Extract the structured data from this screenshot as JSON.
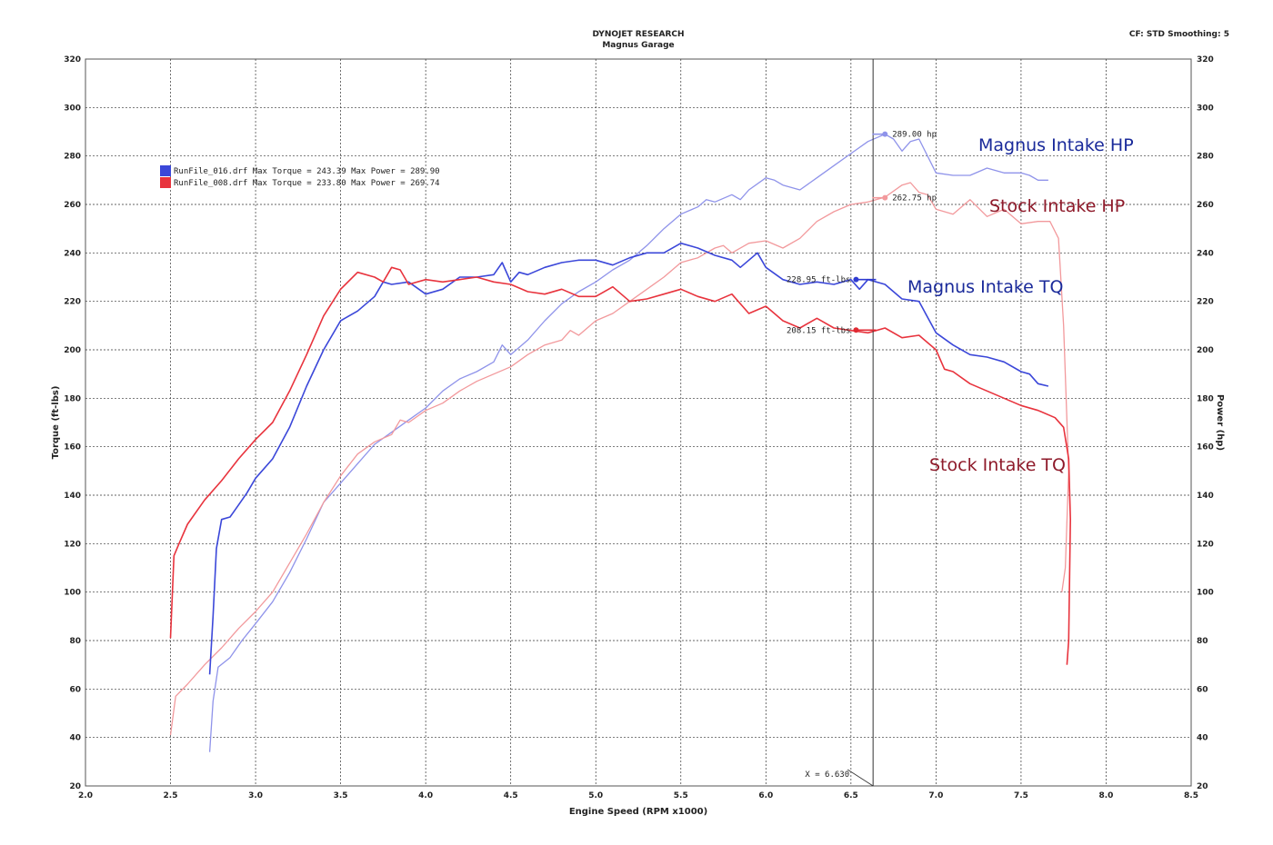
{
  "header": {
    "title": "DYNOJET RESEARCH",
    "subtitle": "Magnus Garage",
    "settings": "CF: STD  Smoothing: 5"
  },
  "chart_data": {
    "type": "line",
    "xlabel": "Engine Speed (RPM x1000)",
    "ylabel_left": "Torque (ft-lbs)",
    "ylabel_right": "Power (hp)",
    "xlim": [
      2.0,
      8.5
    ],
    "ylim": [
      20,
      320
    ],
    "x_ticks": [
      "2.0",
      "2.5",
      "3.0",
      "3.5",
      "4.0",
      "4.5",
      "5.0",
      "5.5",
      "6.0",
      "6.5",
      "7.0",
      "7.5",
      "8.0",
      "8.5"
    ],
    "y_ticks": [
      "20",
      "40",
      "60",
      "80",
      "100",
      "120",
      "140",
      "160",
      "180",
      "200",
      "220",
      "240",
      "260",
      "280",
      "300",
      "320"
    ],
    "grid": true,
    "legend": [
      {
        "label": "RunFile_016.drf Max Torque = 243.39 Max Power = 289.90",
        "color": "#3b47d9"
      },
      {
        "label": "RunFile_008.drf Max Torque = 233.80 Max Power = 269.74",
        "color": "#e8333d"
      }
    ],
    "cursor": {
      "x": 6.63,
      "label": "X = 6.630"
    },
    "markers": [
      {
        "series": "blue-hp",
        "x": 6.7,
        "y": 289,
        "label": "289.00 hp"
      },
      {
        "series": "red-hp",
        "x": 6.7,
        "y": 262.75,
        "label": "262.75 hp"
      },
      {
        "series": "blue-tq",
        "x": 6.53,
        "y": 229,
        "label": "228.95 ft-lbs"
      },
      {
        "series": "red-tq",
        "x": 6.53,
        "y": 208.15,
        "label": "208.15 ft-lbs"
      }
    ],
    "series": [
      {
        "name": "Magnus Intake HP",
        "color": "#8f93ea",
        "width": 1.3,
        "points": [
          [
            2.73,
            34
          ],
          [
            2.75,
            55
          ],
          [
            2.78,
            69
          ],
          [
            2.85,
            73
          ],
          [
            2.92,
            80
          ],
          [
            3.0,
            87
          ],
          [
            3.1,
            96
          ],
          [
            3.2,
            108
          ],
          [
            3.3,
            122
          ],
          [
            3.4,
            137
          ],
          [
            3.5,
            145
          ],
          [
            3.6,
            153
          ],
          [
            3.7,
            161
          ],
          [
            3.8,
            166
          ],
          [
            3.9,
            171
          ],
          [
            4.0,
            176
          ],
          [
            4.1,
            183
          ],
          [
            4.2,
            188
          ],
          [
            4.3,
            191
          ],
          [
            4.4,
            195
          ],
          [
            4.45,
            202
          ],
          [
            4.5,
            198
          ],
          [
            4.6,
            204
          ],
          [
            4.7,
            212
          ],
          [
            4.8,
            219
          ],
          [
            4.9,
            224
          ],
          [
            5.0,
            228
          ],
          [
            5.1,
            233
          ],
          [
            5.2,
            237
          ],
          [
            5.3,
            243
          ],
          [
            5.4,
            250
          ],
          [
            5.5,
            256
          ],
          [
            5.6,
            259
          ],
          [
            5.65,
            262
          ],
          [
            5.7,
            261
          ],
          [
            5.8,
            264
          ],
          [
            5.85,
            262
          ],
          [
            5.9,
            266
          ],
          [
            6.0,
            271
          ],
          [
            6.05,
            270
          ],
          [
            6.1,
            268
          ],
          [
            6.2,
            266
          ],
          [
            6.3,
            271
          ],
          [
            6.4,
            276
          ],
          [
            6.5,
            281
          ],
          [
            6.6,
            286
          ],
          [
            6.7,
            289
          ],
          [
            6.75,
            287
          ],
          [
            6.8,
            282
          ],
          [
            6.85,
            286
          ],
          [
            6.9,
            287
          ],
          [
            7.0,
            273
          ],
          [
            7.1,
            272
          ],
          [
            7.2,
            272
          ],
          [
            7.3,
            275
          ],
          [
            7.4,
            273
          ],
          [
            7.5,
            273
          ],
          [
            7.55,
            272
          ],
          [
            7.6,
            270
          ],
          [
            7.66,
            270
          ]
        ]
      },
      {
        "name": "Stock Intake HP",
        "color": "#f2999c",
        "width": 1.3,
        "points": [
          [
            2.5,
            41
          ],
          [
            2.53,
            57
          ],
          [
            2.6,
            62
          ],
          [
            2.7,
            70
          ],
          [
            2.8,
            77
          ],
          [
            2.9,
            85
          ],
          [
            3.0,
            92
          ],
          [
            3.1,
            100
          ],
          [
            3.2,
            112
          ],
          [
            3.3,
            124
          ],
          [
            3.4,
            137
          ],
          [
            3.5,
            148
          ],
          [
            3.6,
            157
          ],
          [
            3.7,
            162
          ],
          [
            3.8,
            165
          ],
          [
            3.85,
            171
          ],
          [
            3.9,
            170
          ],
          [
            4.0,
            175
          ],
          [
            4.1,
            178
          ],
          [
            4.2,
            183
          ],
          [
            4.3,
            187
          ],
          [
            4.4,
            190
          ],
          [
            4.5,
            193
          ],
          [
            4.6,
            198
          ],
          [
            4.7,
            202
          ],
          [
            4.8,
            204
          ],
          [
            4.85,
            208
          ],
          [
            4.9,
            206
          ],
          [
            5.0,
            212
          ],
          [
            5.1,
            215
          ],
          [
            5.2,
            220
          ],
          [
            5.3,
            225
          ],
          [
            5.4,
            230
          ],
          [
            5.5,
            236
          ],
          [
            5.6,
            238
          ],
          [
            5.7,
            242
          ],
          [
            5.75,
            243
          ],
          [
            5.8,
            240
          ],
          [
            5.9,
            244
          ],
          [
            6.0,
            245
          ],
          [
            6.1,
            242
          ],
          [
            6.2,
            246
          ],
          [
            6.3,
            253
          ],
          [
            6.4,
            257
          ],
          [
            6.5,
            260
          ],
          [
            6.6,
            261
          ],
          [
            6.7,
            263
          ],
          [
            6.8,
            268
          ],
          [
            6.85,
            269
          ],
          [
            6.9,
            265
          ],
          [
            6.95,
            264
          ],
          [
            7.0,
            258
          ],
          [
            7.1,
            256
          ],
          [
            7.2,
            262
          ],
          [
            7.3,
            255
          ],
          [
            7.4,
            258
          ],
          [
            7.5,
            252
          ],
          [
            7.6,
            253
          ],
          [
            7.67,
            253
          ],
          [
            7.72,
            246
          ],
          [
            7.75,
            210
          ],
          [
            7.78,
            150
          ],
          [
            7.76,
            110
          ],
          [
            7.74,
            100
          ]
        ]
      },
      {
        "name": "Magnus Intake TQ",
        "color": "#3b47d9",
        "width": 1.6,
        "points": [
          [
            2.73,
            66
          ],
          [
            2.75,
            90
          ],
          [
            2.77,
            118
          ],
          [
            2.8,
            130
          ],
          [
            2.85,
            131
          ],
          [
            2.9,
            136
          ],
          [
            2.95,
            141
          ],
          [
            3.0,
            147
          ],
          [
            3.1,
            155
          ],
          [
            3.2,
            168
          ],
          [
            3.3,
            185
          ],
          [
            3.4,
            200
          ],
          [
            3.5,
            212
          ],
          [
            3.6,
            216
          ],
          [
            3.7,
            222
          ],
          [
            3.75,
            228
          ],
          [
            3.8,
            227
          ],
          [
            3.9,
            228
          ],
          [
            4.0,
            223
          ],
          [
            4.1,
            225
          ],
          [
            4.2,
            230
          ],
          [
            4.3,
            230
          ],
          [
            4.4,
            231
          ],
          [
            4.45,
            236
          ],
          [
            4.5,
            228
          ],
          [
            4.55,
            232
          ],
          [
            4.6,
            231
          ],
          [
            4.7,
            234
          ],
          [
            4.8,
            236
          ],
          [
            4.9,
            237
          ],
          [
            5.0,
            237
          ],
          [
            5.1,
            235
          ],
          [
            5.2,
            238
          ],
          [
            5.3,
            240
          ],
          [
            5.4,
            240
          ],
          [
            5.5,
            244
          ],
          [
            5.6,
            242
          ],
          [
            5.7,
            239
          ],
          [
            5.8,
            237
          ],
          [
            5.85,
            234
          ],
          [
            5.9,
            237
          ],
          [
            5.95,
            240
          ],
          [
            6.0,
            234
          ],
          [
            6.1,
            229
          ],
          [
            6.2,
            227
          ],
          [
            6.3,
            228
          ],
          [
            6.4,
            227
          ],
          [
            6.5,
            229
          ],
          [
            6.55,
            225
          ],
          [
            6.6,
            229
          ],
          [
            6.7,
            227
          ],
          [
            6.8,
            221
          ],
          [
            6.9,
            220
          ],
          [
            7.0,
            207
          ],
          [
            7.1,
            202
          ],
          [
            7.2,
            198
          ],
          [
            7.3,
            197
          ],
          [
            7.4,
            195
          ],
          [
            7.5,
            191
          ],
          [
            7.55,
            190
          ],
          [
            7.6,
            186
          ],
          [
            7.66,
            185
          ]
        ]
      },
      {
        "name": "Stock Intake TQ",
        "color": "#e8333d",
        "width": 1.6,
        "points": [
          [
            2.5,
            81
          ],
          [
            2.52,
            115
          ],
          [
            2.55,
            120
          ],
          [
            2.6,
            128
          ],
          [
            2.7,
            138
          ],
          [
            2.8,
            146
          ],
          [
            2.9,
            155
          ],
          [
            3.0,
            163
          ],
          [
            3.1,
            170
          ],
          [
            3.2,
            183
          ],
          [
            3.3,
            198
          ],
          [
            3.4,
            214
          ],
          [
            3.5,
            225
          ],
          [
            3.6,
            232
          ],
          [
            3.7,
            230
          ],
          [
            3.75,
            228
          ],
          [
            3.8,
            234
          ],
          [
            3.85,
            233
          ],
          [
            3.9,
            227
          ],
          [
            4.0,
            229
          ],
          [
            4.1,
            228
          ],
          [
            4.2,
            229
          ],
          [
            4.3,
            230
          ],
          [
            4.4,
            228
          ],
          [
            4.5,
            227
          ],
          [
            4.6,
            224
          ],
          [
            4.7,
            223
          ],
          [
            4.8,
            225
          ],
          [
            4.9,
            222
          ],
          [
            5.0,
            222
          ],
          [
            5.1,
            226
          ],
          [
            5.2,
            220
          ],
          [
            5.3,
            221
          ],
          [
            5.4,
            223
          ],
          [
            5.5,
            225
          ],
          [
            5.6,
            222
          ],
          [
            5.7,
            220
          ],
          [
            5.8,
            223
          ],
          [
            5.9,
            215
          ],
          [
            6.0,
            218
          ],
          [
            6.1,
            212
          ],
          [
            6.2,
            209
          ],
          [
            6.3,
            213
          ],
          [
            6.4,
            209
          ],
          [
            6.5,
            208
          ],
          [
            6.6,
            207
          ],
          [
            6.7,
            209
          ],
          [
            6.8,
            205
          ],
          [
            6.9,
            206
          ],
          [
            7.0,
            200
          ],
          [
            7.05,
            192
          ],
          [
            7.1,
            191
          ],
          [
            7.2,
            186
          ],
          [
            7.3,
            183
          ],
          [
            7.4,
            180
          ],
          [
            7.5,
            177
          ],
          [
            7.6,
            175
          ],
          [
            7.7,
            172
          ],
          [
            7.75,
            168
          ],
          [
            7.78,
            155
          ],
          [
            7.79,
            130
          ],
          [
            7.78,
            80
          ],
          [
            7.77,
            70
          ]
        ]
      }
    ]
  },
  "callouts": {
    "blue_hp": "Magnus Intake HP",
    "red_hp": "Stock Intake HP",
    "blue_tq": "Magnus Intake TQ",
    "red_tq": "Stock Intake TQ"
  },
  "colors": {
    "magnus_text": "#1a2a9a",
    "stock_text": "#8e1a2a"
  }
}
